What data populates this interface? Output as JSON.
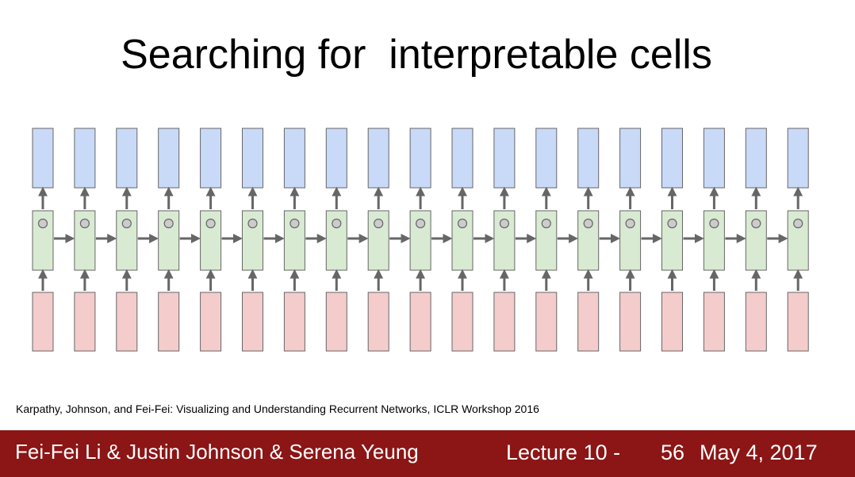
{
  "slide": {
    "title": "Searching for  interpretable cells",
    "citation": "Karpathy, Johnson, and Fei-Fei: Visualizing and Understanding Recurrent Networks, ICLR Workshop 2016"
  },
  "diagram": {
    "timesteps": 19,
    "colors": {
      "output_fill": "#c9daf8",
      "hidden_fill": "#d9ead3",
      "input_fill": "#f4cccc",
      "stroke": "#666666",
      "arrow": "#666666",
      "cell_dot": "#cccccc"
    }
  },
  "footer": {
    "authors": "Fei-Fei Li & Justin Johnson & Serena Yeung",
    "lecture": "Lecture 10 -",
    "page": "56",
    "date": "May 4, 2017",
    "bar_color": "#8c1515"
  }
}
